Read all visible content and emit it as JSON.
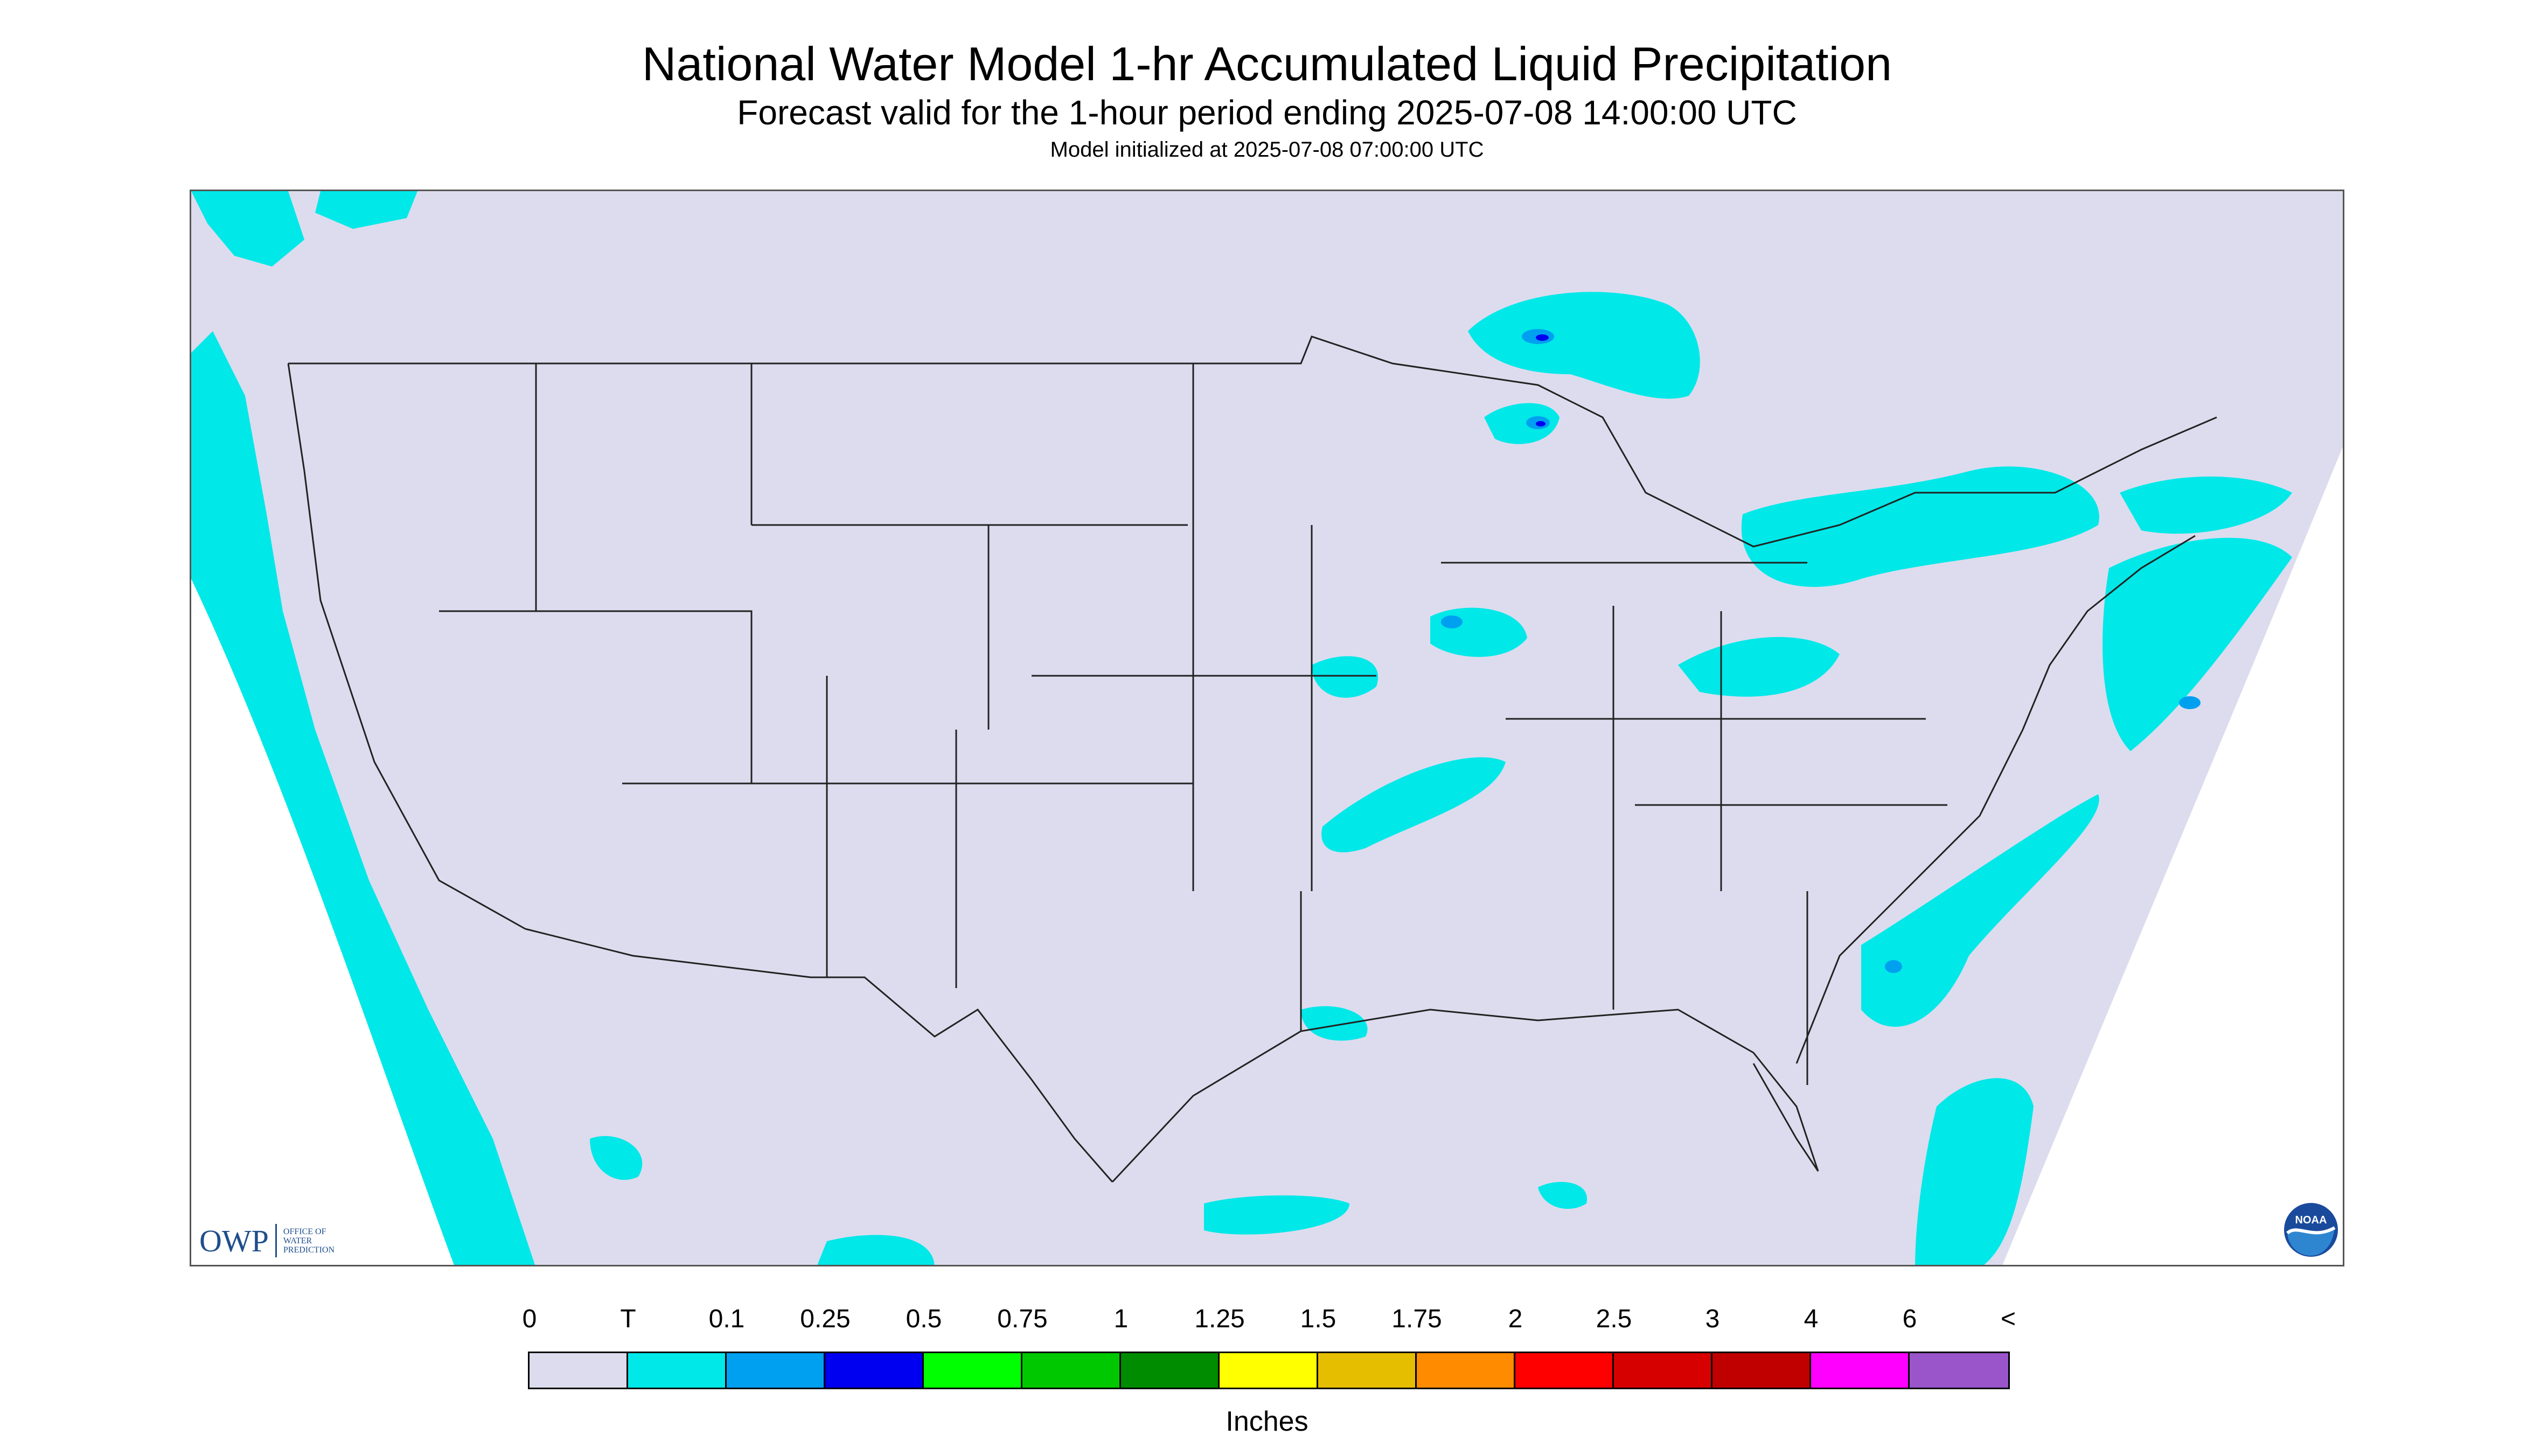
{
  "title": "National Water Model 1-hr Accumulated Liquid Precipitation",
  "subtitle": "Forecast valid for the 1-hour period ending 2025-07-08 14:00:00 UTC",
  "init_line": "Model initialized at 2025-07-08 07:00:00 UTC",
  "logos": {
    "owp_text": "OWP",
    "owp_subtext": "OFFICE OF WATER PREDICTION",
    "noaa_text": "NOAA"
  },
  "legend": {
    "labels": [
      "0",
      "T",
      "0.1",
      "0.25",
      "0.5",
      "0.75",
      "1",
      "1.25",
      "1.5",
      "1.75",
      "2",
      "2.5",
      "3",
      "4",
      "6",
      "<"
    ],
    "colors": [
      "#dcdcee",
      "#00e8e8",
      "#00a0f0",
      "#0000f0",
      "#00ff00",
      "#00c800",
      "#008c00",
      "#ffff00",
      "#e6be00",
      "#ff8c00",
      "#ff0000",
      "#d70000",
      "#c00000",
      "#ff00ff",
      "#9955c9"
    ],
    "units": "Inches"
  },
  "colors": {
    "no_precip": "#dcdcee",
    "trace": "#00e8e8",
    "boundary": "#222222",
    "frame": "#555555"
  }
}
